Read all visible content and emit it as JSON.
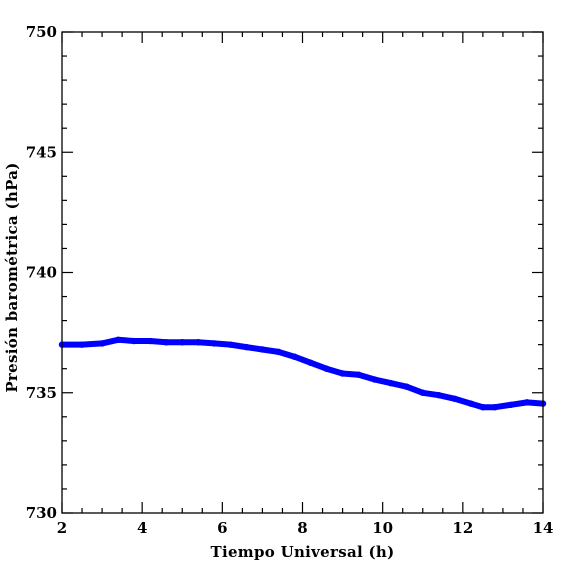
{
  "chart_data": {
    "type": "line",
    "xlabel": "Tiempo Universal (h)",
    "ylabel": "Presión barométrica (hPa)",
    "xlim": [
      2,
      14
    ],
    "ylim": [
      730,
      750
    ],
    "x_ticks": [
      2,
      4,
      6,
      8,
      10,
      12,
      14
    ],
    "y_ticks": [
      730,
      735,
      740,
      745,
      750
    ],
    "x_minor_step": 0.5,
    "y_minor_step": 1,
    "grid": false,
    "series": [
      {
        "color": "#0000ff",
        "x": [
          2.0,
          2.5,
          3.0,
          3.4,
          3.8,
          4.2,
          4.6,
          5.0,
          5.4,
          5.8,
          6.2,
          6.6,
          7.0,
          7.4,
          7.8,
          8.2,
          8.6,
          9.0,
          9.4,
          9.8,
          10.2,
          10.6,
          11.0,
          11.4,
          11.8,
          12.2,
          12.5,
          12.8,
          13.2,
          13.6,
          14.0
        ],
        "y": [
          737.0,
          737.0,
          737.05,
          737.2,
          737.15,
          737.15,
          737.1,
          737.1,
          737.1,
          737.05,
          737.0,
          736.9,
          736.8,
          736.7,
          736.5,
          736.25,
          736.0,
          735.8,
          735.75,
          735.55,
          735.4,
          735.25,
          735.0,
          734.9,
          734.75,
          734.55,
          734.4,
          734.4,
          734.5,
          734.6,
          734.55
        ]
      }
    ]
  }
}
